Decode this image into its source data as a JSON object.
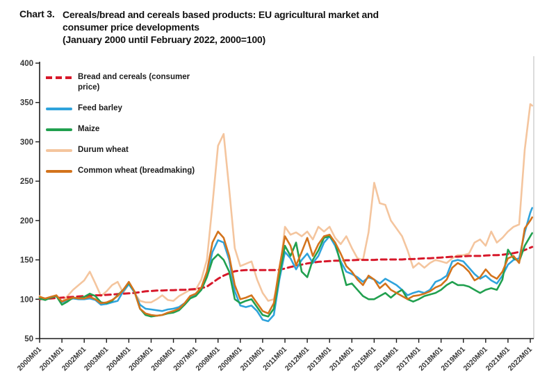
{
  "header": {
    "label": "Chart 3.",
    "title_line1": "Cereals/bread and cereals based products: EU agricultural market and",
    "title_line2": "consumer price developments",
    "title_line3": "(January 2000 until February 2022, 2000=100)"
  },
  "chart_data": {
    "type": "line",
    "title": "Cereals/bread and cereals based products: EU agricultural market and consumer price developments (January 2000 until February 2022, 2000=100)",
    "xlabel": "",
    "ylabel": "",
    "ylim": [
      50,
      400
    ],
    "y_ticks": [
      50,
      100,
      150,
      200,
      250,
      300,
      350,
      400
    ],
    "grid": false,
    "legend_position": "top-left-inside",
    "x_tick_labels": [
      "2000M01",
      "2001M01",
      "2002M01",
      "2003M01",
      "2004M01",
      "2005M01",
      "2006M01",
      "2007M01",
      "2008M01",
      "2009M01",
      "2010M01",
      "2011M01",
      "2012M01",
      "2013M01",
      "2014M01",
      "2015M01",
      "2016M01",
      "2017M01",
      "2018M01",
      "2019M01",
      "2020M01",
      "2021M01",
      "2022M01"
    ],
    "sampling_note": "index values sampled quarterly (Jan/Apr/Jul/Oct) from 2000M01 to 2022M01, plus final point 2022M02",
    "months_per_point": 3,
    "series": [
      {
        "name": "Bread and cereals (consumer price)",
        "color": "#d7182a",
        "dashed": true,
        "values": [
          100,
          100.5,
          101,
          101.5,
          102,
          102.5,
          103,
          103.5,
          104,
          104.5,
          105,
          105,
          105.5,
          106,
          106.5,
          107,
          107.5,
          108,
          109,
          110,
          110.5,
          111,
          111,
          111.5,
          111.5,
          112,
          112,
          112.5,
          113,
          114,
          116,
          121,
          126,
          130,
          133,
          135.5,
          136.5,
          137,
          137,
          137,
          137,
          137,
          137,
          137.5,
          139,
          141,
          142.5,
          144,
          145.5,
          146.5,
          147.5,
          148,
          148.5,
          149,
          149,
          149.5,
          149.5,
          150,
          150,
          150,
          150,
          150.5,
          150.5,
          150.5,
          150.5,
          150.5,
          151,
          151,
          151.5,
          152,
          152,
          152.5,
          153,
          153.5,
          154,
          154,
          154.5,
          155,
          155,
          155,
          155.5,
          156,
          156,
          156.5,
          157.5,
          158.5,
          160,
          162.5,
          165.5,
          166.5
        ]
      },
      {
        "name": "Feed barley",
        "color": "#2fa3dc",
        "dashed": false,
        "values": [
          102,
          100,
          103,
          104,
          96,
          99,
          101,
          100,
          100,
          101,
          99,
          93,
          94,
          96,
          98,
          110,
          119,
          109,
          93,
          88,
          87,
          86,
          85,
          87,
          88,
          90,
          95,
          102,
          105,
          112,
          130,
          160,
          175,
          172,
          150,
          110,
          92,
          90,
          92,
          85,
          74,
          72,
          80,
          125,
          160,
          152,
          138,
          150,
          158,
          146,
          155,
          172,
          180,
          168,
          148,
          135,
          132,
          128,
          122,
          128,
          125,
          120,
          126,
          122,
          118,
          112,
          105,
          108,
          110,
          108,
          112,
          122,
          125,
          130,
          148,
          150,
          148,
          140,
          132,
          126,
          130,
          124,
          120,
          130,
          144,
          150,
          152,
          185,
          210,
          216
        ]
      },
      {
        "name": "Maize",
        "color": "#21a04f",
        "dashed": false,
        "values": [
          101,
          99,
          102,
          104,
          93,
          97,
          102,
          101,
          103,
          107,
          104,
          96,
          95,
          98,
          105,
          112,
          121,
          110,
          88,
          80,
          78,
          79,
          80,
          82,
          83,
          86,
          93,
          101,
          104,
          112,
          128,
          150,
          157,
          150,
          135,
          100,
          95,
          98,
          100,
          90,
          80,
          78,
          88,
          130,
          168,
          155,
          172,
          135,
          128,
          150,
          162,
          178,
          180,
          172,
          145,
          118,
          120,
          112,
          104,
          100,
          100,
          104,
          108,
          102,
          108,
          112,
          100,
          97,
          100,
          104,
          106,
          108,
          112,
          118,
          122,
          118,
          118,
          116,
          112,
          108,
          112,
          114,
          112,
          125,
          163,
          152,
          148,
          168,
          180,
          184
        ]
      },
      {
        "name": "Durum wheat",
        "color": "#f4c59e",
        "dashed": false,
        "values": [
          104,
          100,
          102,
          105,
          97,
          104,
          112,
          118,
          124,
          135,
          120,
          104,
          110,
          118,
          122,
          108,
          120,
          108,
          98,
          96,
          96,
          100,
          105,
          99,
          98,
          104,
          108,
          112,
          112,
          125,
          150,
          220,
          295,
          310,
          240,
          165,
          142,
          145,
          148,
          125,
          108,
          98,
          100,
          130,
          192,
          182,
          185,
          180,
          186,
          176,
          192,
          186,
          192,
          178,
          170,
          180,
          165,
          152,
          150,
          185,
          248,
          222,
          220,
          200,
          190,
          180,
          162,
          140,
          146,
          140,
          146,
          150,
          148,
          146,
          152,
          156,
          156,
          158,
          172,
          176,
          168,
          186,
          172,
          178,
          186,
          192,
          195,
          290,
          348,
          346
        ]
      },
      {
        "name": "Common wheat (breadmaking)",
        "color": "#d3731c",
        "dashed": false,
        "values": [
          103,
          101,
          103,
          105,
          97,
          100,
          102,
          101,
          101,
          103,
          100,
          95,
          96,
          99,
          104,
          112,
          122,
          110,
          88,
          82,
          80,
          79,
          80,
          83,
          85,
          88,
          95,
          104,
          107,
          115,
          135,
          172,
          186,
          178,
          155,
          118,
          100,
          102,
          105,
          95,
          85,
          82,
          95,
          140,
          180,
          168,
          143,
          160,
          178,
          155,
          170,
          180,
          182,
          172,
          158,
          142,
          135,
          125,
          118,
          130,
          125,
          114,
          120,
          112,
          108,
          104,
          100,
          104,
          105,
          107,
          110,
          115,
          118,
          125,
          140,
          146,
          142,
          135,
          124,
          128,
          138,
          130,
          126,
          135,
          152,
          155,
          146,
          190,
          200,
          204
        ]
      }
    ]
  }
}
